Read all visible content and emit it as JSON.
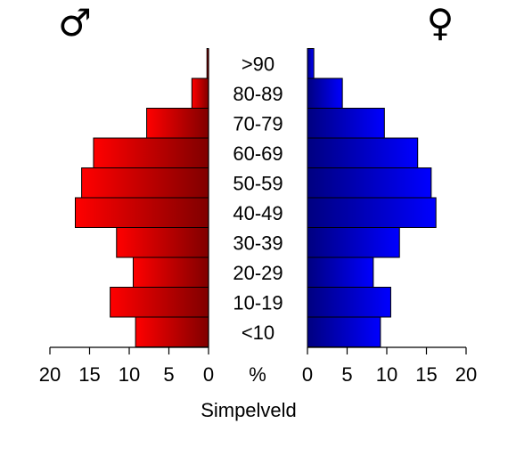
{
  "chart_data": {
    "type": "bar",
    "title": "Simpelveld",
    "categories": [
      "<10",
      "10-19",
      "20-29",
      "30-39",
      "40-49",
      "50-59",
      "60-69",
      "70-79",
      "80-89",
      ">90"
    ],
    "series": [
      {
        "name": "♂",
        "values": [
          9.2,
          12.4,
          9.5,
          11.6,
          16.8,
          16.0,
          14.5,
          7.8,
          2.1,
          0.2
        ],
        "color_light": "#ff0000",
        "color_dark": "#800000"
      },
      {
        "name": "♀",
        "values": [
          9.2,
          10.5,
          8.3,
          11.6,
          16.2,
          15.6,
          13.9,
          9.7,
          4.4,
          0.8
        ],
        "color_light": "#0000ff",
        "color_dark": "#000080"
      }
    ],
    "xlim": [
      0,
      20
    ],
    "ticks": [
      0,
      5,
      10,
      15,
      20
    ],
    "unit_label": "%",
    "male_symbol": "♂",
    "female_symbol": "♀"
  }
}
